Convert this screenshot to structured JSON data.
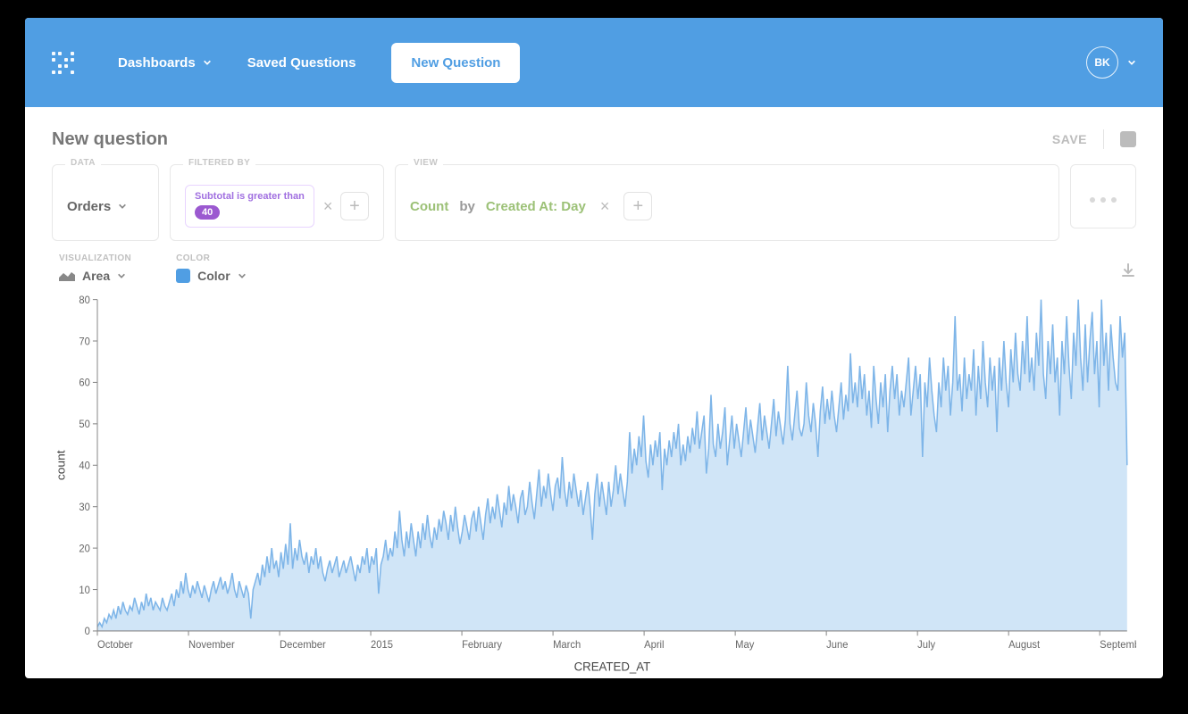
{
  "colors": {
    "topbar_bg": "#509ee3",
    "accent_green": "#9cc177",
    "accent_purple": "#a06fe0",
    "badge_purple": "#9b59d0",
    "chart_line": "#7eb5e8",
    "chart_fill": "#c8e0f6",
    "axis": "#888888",
    "text_muted": "#c0c0c0"
  },
  "nav": {
    "dashboards": "Dashboards",
    "saved": "Saved Questions",
    "new_question": "New Question",
    "avatar": "BK"
  },
  "title": "New question",
  "actions": {
    "save": "SAVE"
  },
  "query": {
    "data_label": "DATA",
    "data_source": "Orders",
    "filter_label": "FILTERED BY",
    "filter_text": "Subtotal is greater than",
    "filter_value": "40",
    "view_label": "VIEW",
    "view_metric": "Count",
    "view_by": "by",
    "view_dimension": "Created At: Day"
  },
  "viz": {
    "vis_label": "VISUALIZATION",
    "vis_type": "Area",
    "color_label": "COLOR",
    "color_name": "Color",
    "color_hex": "#509ee3"
  },
  "chart": {
    "type": "area",
    "x_axis_title": "CREATED_AT",
    "y_axis_title": "count",
    "ylim": [
      0,
      80
    ],
    "ytick_step": 10,
    "y_ticks": [
      0,
      10,
      20,
      30,
      40,
      50,
      60,
      70,
      80
    ],
    "x_tick_labels": [
      "October",
      "November",
      "December",
      "2015",
      "February",
      "March",
      "April",
      "May",
      "June",
      "July",
      "August",
      "September"
    ],
    "line_color": "#7eb5e8",
    "fill_color": "#c8e0f6",
    "fill_opacity": 0.85,
    "line_width": 1.5,
    "background_color": "#ffffff",
    "data": [
      1,
      2,
      1,
      3,
      2,
      4,
      3,
      5,
      3,
      6,
      4,
      7,
      5,
      4,
      6,
      5,
      8,
      6,
      4,
      7,
      5,
      9,
      6,
      8,
      5,
      7,
      6,
      5,
      8,
      6,
      5,
      7,
      9,
      6,
      10,
      8,
      12,
      9,
      14,
      10,
      8,
      11,
      9,
      12,
      10,
      8,
      11,
      9,
      7,
      10,
      12,
      9,
      11,
      13,
      10,
      12,
      9,
      11,
      14,
      10,
      8,
      12,
      10,
      8,
      11,
      9,
      3,
      10,
      12,
      14,
      11,
      16,
      13,
      18,
      14,
      20,
      15,
      17,
      13,
      19,
      15,
      21,
      16,
      26,
      15,
      20,
      17,
      22,
      18,
      16,
      19,
      14,
      18,
      16,
      20,
      15,
      18,
      14,
      12,
      15,
      17,
      14,
      16,
      18,
      13,
      15,
      17,
      14,
      16,
      18,
      15,
      12,
      16,
      14,
      18,
      16,
      20,
      14,
      18,
      16,
      20,
      9,
      16,
      18,
      22,
      17,
      20,
      18,
      24,
      20,
      29,
      22,
      18,
      24,
      20,
      26,
      22,
      18,
      24,
      20,
      26,
      22,
      28,
      23,
      20,
      25,
      22,
      27,
      24,
      29,
      26,
      22,
      28,
      24,
      30,
      25,
      21,
      24,
      28,
      25,
      22,
      27,
      29,
      24,
      30,
      26,
      22,
      28,
      32,
      26,
      30,
      27,
      33,
      29,
      25,
      31,
      28,
      35,
      29,
      33,
      30,
      26,
      32,
      34,
      28,
      30,
      36,
      31,
      27,
      33,
      39,
      30,
      35,
      32,
      38,
      33,
      29,
      35,
      37,
      32,
      42,
      34,
      30,
      36,
      32,
      38,
      34,
      30,
      34,
      28,
      32,
      36,
      30,
      22,
      33,
      38,
      30,
      36,
      32,
      28,
      36,
      30,
      34,
      40,
      33,
      38,
      34,
      30,
      36,
      48,
      38,
      44,
      40,
      47,
      42,
      52,
      41,
      37,
      45,
      40,
      46,
      42,
      48,
      34,
      44,
      40,
      46,
      42,
      48,
      44,
      50,
      40,
      45,
      41,
      47,
      43,
      49,
      45,
      53,
      44,
      48,
      52,
      38,
      44,
      57,
      45,
      42,
      50,
      44,
      48,
      54,
      40,
      46,
      52,
      44,
      50,
      46,
      42,
      48,
      54,
      45,
      51,
      47,
      43,
      49,
      55,
      46,
      52,
      48,
      44,
      50,
      56,
      47,
      53,
      49,
      45,
      51,
      64,
      50,
      46,
      52,
      58,
      49,
      47,
      50,
      60,
      52,
      48,
      55,
      50,
      42,
      53,
      59,
      50,
      56,
      51,
      58,
      52,
      48,
      54,
      60,
      51,
      57,
      53,
      67,
      55,
      60,
      54,
      64,
      56,
      62,
      52,
      58,
      49,
      64,
      56,
      50,
      60,
      54,
      62,
      48,
      58,
      64,
      56,
      62,
      52,
      58,
      54,
      60,
      66,
      52,
      58,
      64,
      56,
      62,
      42,
      60,
      54,
      66,
      58,
      52,
      48,
      60,
      54,
      66,
      58,
      64,
      52,
      60,
      76,
      58,
      62,
      53,
      66,
      56,
      62,
      58,
      68,
      52,
      64,
      56,
      70,
      60,
      54,
      66,
      58,
      64,
      48,
      66,
      58,
      70,
      60,
      54,
      68,
      60,
      72,
      62,
      58,
      70,
      62,
      76,
      60,
      66,
      58,
      72,
      64,
      80,
      62,
      56,
      70,
      62,
      74,
      60,
      66,
      52,
      70,
      62,
      76,
      64,
      56,
      72,
      64,
      80,
      66,
      58,
      74,
      60,
      70,
      77,
      62,
      70,
      54,
      80,
      64,
      72,
      58,
      74,
      66,
      60,
      58,
      76,
      66,
      72,
      40
    ]
  }
}
